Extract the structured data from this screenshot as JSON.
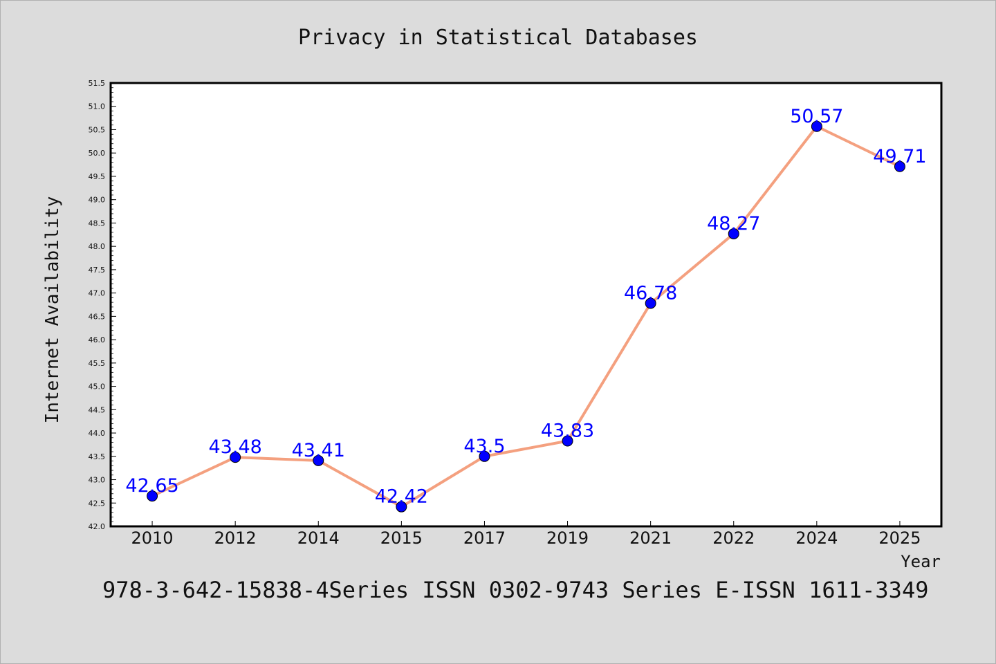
{
  "chart_data": {
    "type": "line",
    "title": "Privacy in Statistical Databases",
    "xlabel": "Year",
    "ylabel": "Internet Availability",
    "categories": [
      "2010",
      "2012",
      "2014",
      "2015",
      "2017",
      "2019",
      "2021",
      "2022",
      "2024",
      "2025"
    ],
    "series": [
      {
        "values": [
          42.65,
          43.48,
          43.41,
          42.42,
          43.5,
          43.83,
          46.78,
          48.27,
          50.57,
          49.71
        ],
        "labels": [
          "42.65",
          "43.48",
          "43.41",
          "42.42",
          "43.5",
          "43.83",
          "46.78",
          "48.27",
          "50.57",
          "49.71"
        ],
        "line_color": "#f4a07f",
        "marker_color": "#0000ff"
      }
    ],
    "ylim": [
      42.0,
      51.5
    ],
    "yticks": [
      "42.0",
      "42.5",
      "43.0",
      "43.5",
      "44.0",
      "44.5",
      "45.0",
      "45.5",
      "46.0",
      "46.5",
      "47.0",
      "47.5",
      "48.0",
      "48.5",
      "49.0",
      "49.5",
      "50.0",
      "50.5",
      "51.0",
      "51.5"
    ],
    "grid": false,
    "legend": "none"
  },
  "footer": "978-3-642-15838-4Series ISSN 0302-9743 Series E-ISSN 1611-3349",
  "colors": {
    "background": "#dcdcdc",
    "plot_background": "#ffffff",
    "line": "#f4a07f",
    "marker": "#0000ff",
    "data_label": "#0000ff"
  }
}
